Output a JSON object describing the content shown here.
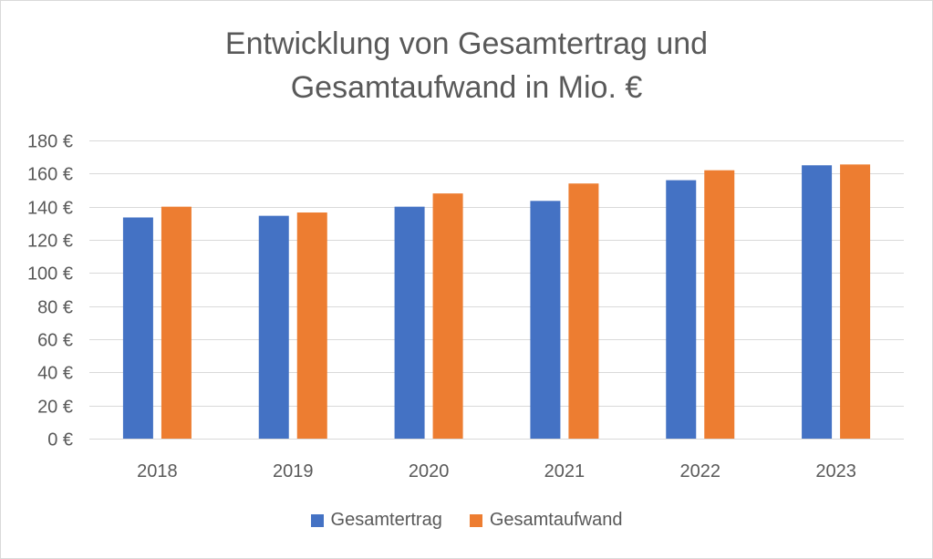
{
  "chart_data": {
    "type": "bar",
    "title": "Entwicklung von Gesamtertrag und Gesamtaufwand in Mio. €",
    "title_lines": [
      "Entwicklung von Gesamtertrag und",
      "Gesamtaufwand in Mio. €"
    ],
    "categories": [
      "2018",
      "2019",
      "2020",
      "2021",
      "2022",
      "2023"
    ],
    "series": [
      {
        "name": "Gesamtertrag",
        "color": "#4472C4",
        "values": [
          133.5,
          134.5,
          140.0,
          143.5,
          156.0,
          165.0
        ]
      },
      {
        "name": "Gesamtaufwand",
        "color": "#ED7D31",
        "values": [
          140.0,
          136.5,
          148.0,
          154.0,
          162.0,
          165.5
        ]
      }
    ],
    "y_ticks": [
      "0 €",
      "20 €",
      "40 €",
      "60 €",
      "80 €",
      "100 €",
      "120 €",
      "140 €",
      "160 €",
      "180 €"
    ],
    "y_tick_values": [
      0,
      20,
      40,
      60,
      80,
      100,
      120,
      140,
      160,
      180
    ],
    "ylim": [
      0,
      180
    ],
    "xlabel": "",
    "ylabel": "",
    "grid": true,
    "legend_position": "bottom"
  }
}
